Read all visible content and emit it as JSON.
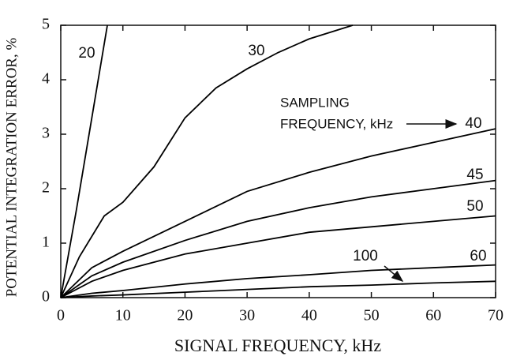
{
  "chart_data": {
    "type": "line",
    "xlabel": "SIGNAL FREQUENCY, kHz",
    "ylabel": "POTENTIAL INTEGRATION ERROR, %",
    "annotation": [
      "SAMPLING",
      "FREQUENCY, kHz"
    ],
    "xlim": [
      0,
      70
    ],
    "xticks": [
      0,
      10,
      20,
      30,
      40,
      50,
      60,
      70
    ],
    "ylim": [
      0,
      5
    ],
    "yticks": [
      0,
      1,
      2,
      3,
      4,
      5
    ],
    "series": [
      {
        "name": "20",
        "color": "#000000",
        "x": [
          0,
          2.5,
          5,
          7.5
        ],
        "values": [
          0,
          1.6,
          3.3,
          5
        ]
      },
      {
        "name": "30",
        "color": "#000000",
        "x": [
          0,
          3,
          7,
          10,
          15,
          20,
          25,
          30,
          35,
          40,
          47
        ],
        "values": [
          0,
          0.75,
          1.5,
          1.75,
          2.4,
          3.3,
          3.85,
          4.2,
          4.5,
          4.75,
          5
        ]
      },
      {
        "name": "40",
        "color": "#000000",
        "x": [
          0,
          5,
          10,
          20,
          30,
          40,
          50,
          60,
          70
        ],
        "values": [
          0,
          0.55,
          0.85,
          1.4,
          1.95,
          2.3,
          2.6,
          2.85,
          3.1
        ]
      },
      {
        "name": "45",
        "color": "#000000",
        "x": [
          0,
          5,
          10,
          20,
          30,
          40,
          50,
          60,
          70
        ],
        "values": [
          0,
          0.4,
          0.65,
          1.05,
          1.4,
          1.65,
          1.85,
          2.0,
          2.15
        ]
      },
      {
        "name": "50",
        "color": "#000000",
        "x": [
          0,
          5,
          10,
          20,
          30,
          40,
          50,
          60,
          70
        ],
        "values": [
          0,
          0.3,
          0.5,
          0.8,
          1.0,
          1.2,
          1.3,
          1.4,
          1.5
        ]
      },
      {
        "name": "60",
        "color": "#000000",
        "x": [
          0,
          5,
          10,
          20,
          30,
          40,
          50,
          60,
          70
        ],
        "values": [
          0,
          0.08,
          0.13,
          0.25,
          0.35,
          0.42,
          0.5,
          0.55,
          0.6
        ]
      },
      {
        "name": "100",
        "color": "#000000",
        "x": [
          0,
          5,
          10,
          20,
          30,
          40,
          50,
          60,
          70
        ],
        "values": [
          0,
          0.03,
          0.05,
          0.1,
          0.15,
          0.2,
          0.23,
          0.27,
          0.3
        ]
      }
    ]
  }
}
